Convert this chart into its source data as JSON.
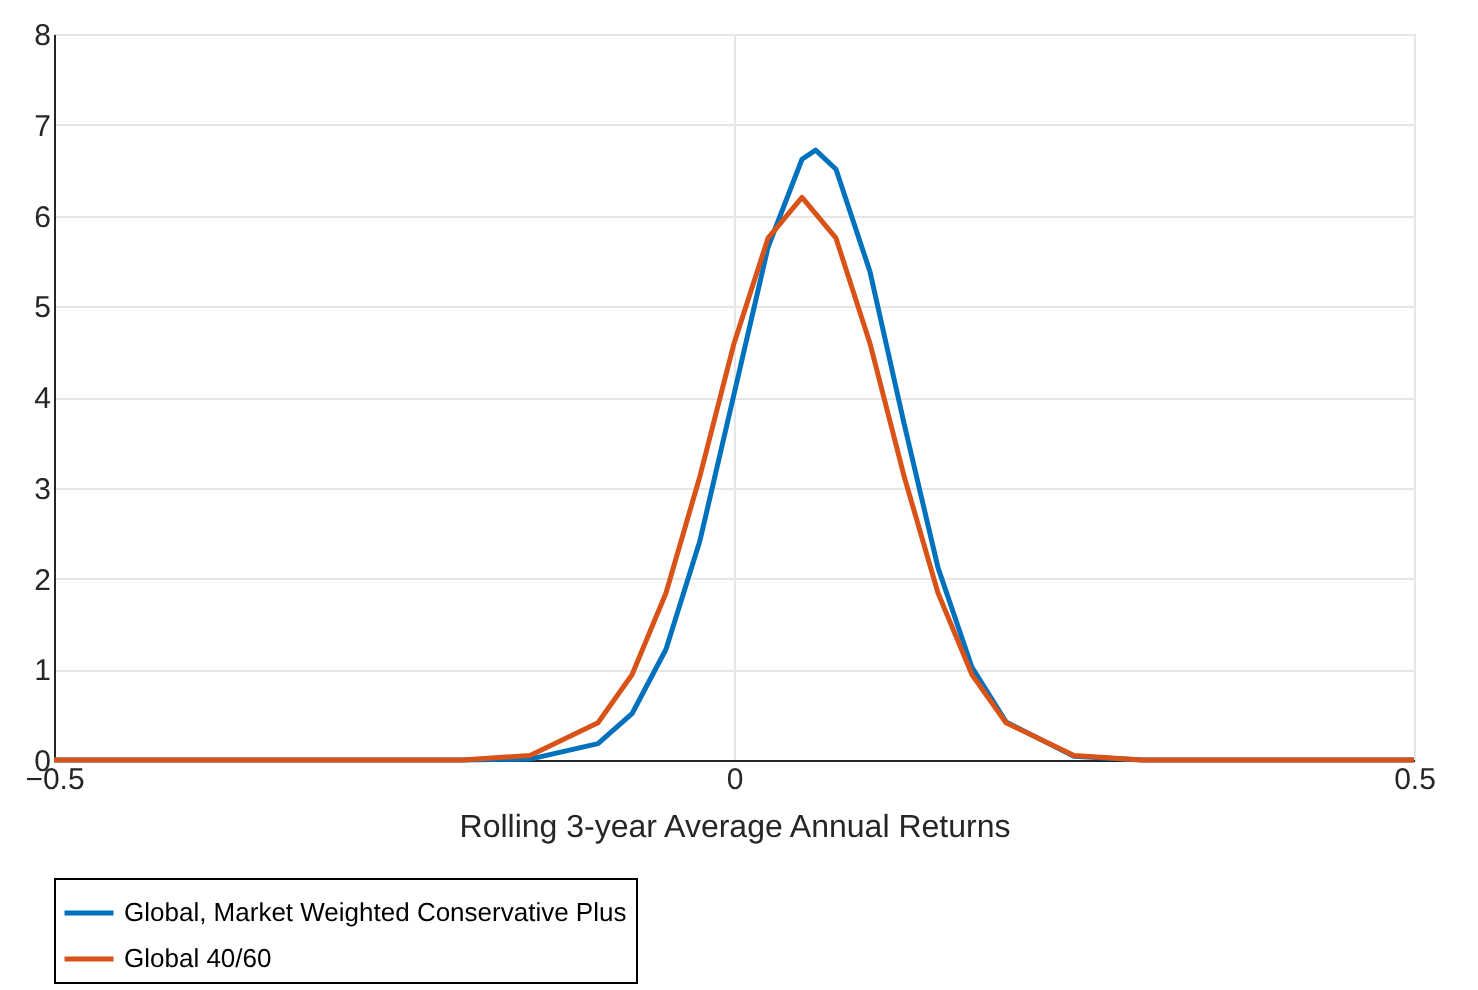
{
  "chart_data": {
    "type": "line",
    "xlabel": "Rolling 3-year Average Annual Returns",
    "xlim": [
      -0.5,
      0.5
    ],
    "xticks": [
      -0.5,
      0,
      0.5
    ],
    "ylim": [
      0,
      8
    ],
    "yticks": [
      0,
      1,
      2,
      3,
      4,
      5,
      6,
      7,
      8
    ],
    "grid": true,
    "legend": "bottom",
    "line_style": "solid",
    "marker": "none",
    "series": [
      {
        "name": "Global, Market Weighted Conservative Plus",
        "color": "#0072bd",
        "x": [
          -0.5,
          -0.2,
          -0.15,
          -0.1,
          -0.075,
          -0.05,
          -0.025,
          0,
          0.025,
          0.05,
          0.06,
          0.075,
          0.1,
          0.125,
          0.15,
          0.175,
          0.2,
          0.25,
          0.3,
          0.5
        ],
        "values": [
          0,
          0,
          0.01,
          0.18,
          0.51,
          1.22,
          2.42,
          4.03,
          5.65,
          6.62,
          6.72,
          6.51,
          5.38,
          3.71,
          2.12,
          1.02,
          0.42,
          0.04,
          0,
          0
        ]
      },
      {
        "name": "Global 40/60",
        "color": "#d95319",
        "x": [
          -0.5,
          -0.2,
          -0.15,
          -0.1,
          -0.075,
          -0.05,
          -0.025,
          0,
          0.025,
          0.05,
          0.075,
          0.1,
          0.125,
          0.15,
          0.175,
          0.2,
          0.25,
          0.3,
          0.5
        ],
        "values": [
          0,
          0,
          0.05,
          0.41,
          0.94,
          1.84,
          3.13,
          4.59,
          5.75,
          6.2,
          5.75,
          4.59,
          3.13,
          1.84,
          0.94,
          0.41,
          0.05,
          0,
          0
        ]
      }
    ]
  }
}
